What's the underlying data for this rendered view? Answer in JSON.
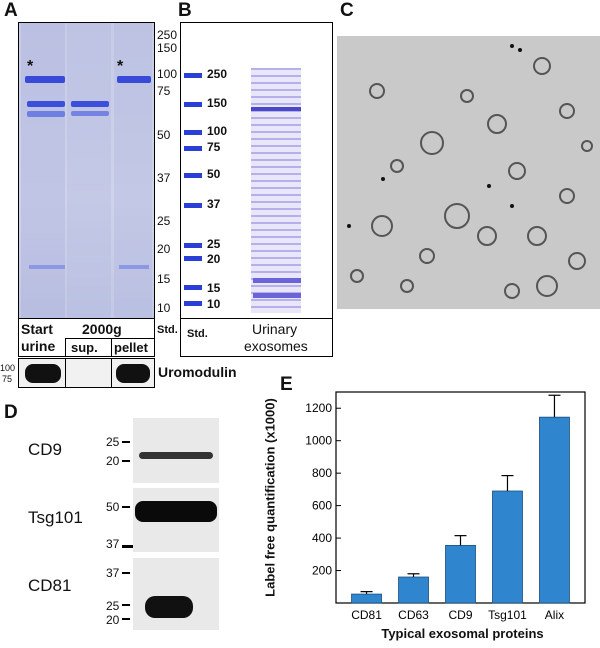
{
  "panels": {
    "A": {
      "letter": "A",
      "star_left": "*",
      "star_right": "*",
      "mw_markers": [
        "250",
        "150",
        "100",
        "75",
        "50",
        "37",
        "25",
        "20",
        "15",
        "10"
      ],
      "lane_labels": {
        "start_top": "Start",
        "start_bottom": "urine",
        "group": "2000g",
        "sup": "sup.",
        "pellet": "pellet",
        "std": "Std."
      },
      "western": {
        "marker_top": "100",
        "marker_bottom": "75",
        "label": "Uromodulin"
      }
    },
    "B": {
      "letter": "B",
      "mw_markers": [
        "250",
        "150",
        "100",
        "75",
        "50",
        "37",
        "25",
        "20",
        "15",
        "10"
      ],
      "lane_labels": {
        "std": "Std.",
        "sample_top": "Urinary",
        "sample_bottom": "exosomes"
      }
    },
    "C": {
      "letter": "C"
    },
    "D": {
      "letter": "D",
      "blots": [
        {
          "protein": "CD9",
          "markers": [
            "25",
            "20"
          ]
        },
        {
          "protein": "Tsg101",
          "markers": [
            "50",
            "37"
          ]
        },
        {
          "protein": "CD81",
          "markers": [
            "37",
            "25",
            "20"
          ]
        }
      ]
    },
    "E": {
      "letter": "E"
    }
  },
  "colors": {
    "coomassie": "#2b3fd6",
    "bar": "#2f86cf",
    "gel_bg": "#c9cde6"
  },
  "chart_data": {
    "type": "bar",
    "categories": [
      "CD81",
      "CD63",
      "CD9",
      "Tsg101",
      "Alix"
    ],
    "values": [
      55,
      160,
      355,
      690,
      1145
    ],
    "errors": [
      15,
      20,
      60,
      95,
      135
    ],
    "ylim": [
      0,
      1300
    ],
    "yticks": [
      "200",
      "400",
      "600",
      "800",
      "1000",
      "1200"
    ],
    "ylabel": "Label free quantification (x1000)",
    "xlabel": "Typical exosomal proteins",
    "grid": false
  }
}
